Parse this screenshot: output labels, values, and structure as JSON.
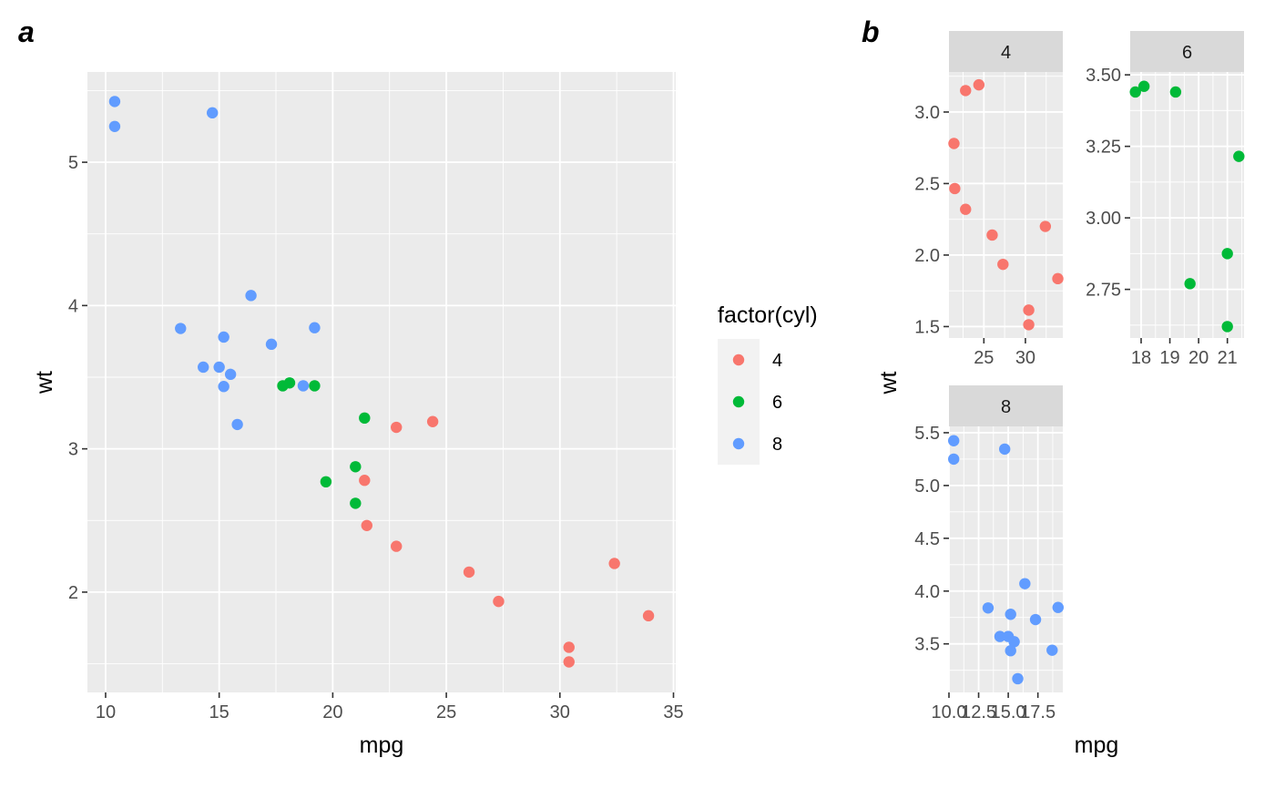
{
  "panel_tags": {
    "a": "a",
    "b": "b"
  },
  "chart_data": [
    {
      "panel": "a",
      "type": "scatter",
      "xlabel": "mpg",
      "ylabel": "wt",
      "xlim": [
        9.2,
        35.1
      ],
      "ylim": [
        1.3,
        5.63
      ],
      "x_ticks": [
        10,
        15,
        20,
        25,
        30,
        35
      ],
      "x_tick_labels": [
        "10",
        "15",
        "20",
        "25",
        "30",
        "35"
      ],
      "y_ticks": [
        2,
        3,
        4,
        5
      ],
      "y_tick_labels": [
        "2",
        "3",
        "4",
        "5"
      ],
      "grid": true,
      "legend": {
        "title": "factor(cyl)",
        "placement": "right",
        "entries": [
          {
            "label": "4",
            "color": "#F8766D"
          },
          {
            "label": "6",
            "color": "#00BA38"
          },
          {
            "label": "8",
            "color": "#619CFF"
          }
        ]
      },
      "series": [
        {
          "name": "4",
          "color": "#F8766D",
          "points": [
            [
              22.8,
              3.15
            ],
            [
              24.4,
              3.19
            ],
            [
              21.4,
              2.78
            ],
            [
              21.5,
              2.465
            ],
            [
              22.8,
              2.32
            ],
            [
              26.0,
              2.14
            ],
            [
              27.3,
              1.935
            ],
            [
              32.4,
              2.2
            ],
            [
              33.9,
              1.835
            ],
            [
              30.4,
              1.615
            ],
            [
              30.4,
              1.513
            ]
          ]
        },
        {
          "name": "6",
          "color": "#00BA38",
          "points": [
            [
              17.8,
              3.44
            ],
            [
              18.1,
              3.46
            ],
            [
              19.2,
              3.44
            ],
            [
              21.4,
              3.215
            ],
            [
              21.0,
              2.875
            ],
            [
              19.7,
              2.77
            ],
            [
              21.0,
              2.62
            ]
          ]
        },
        {
          "name": "8",
          "color": "#619CFF",
          "points": [
            [
              10.4,
              5.424
            ],
            [
              10.4,
              5.25
            ],
            [
              14.7,
              5.345
            ],
            [
              16.4,
              4.07
            ],
            [
              13.3,
              3.84
            ],
            [
              19.2,
              3.845
            ],
            [
              15.2,
              3.78
            ],
            [
              17.3,
              3.73
            ],
            [
              14.3,
              3.57
            ],
            [
              15.0,
              3.57
            ],
            [
              15.5,
              3.52
            ],
            [
              18.7,
              3.44
            ],
            [
              15.2,
              3.435
            ],
            [
              15.8,
              3.17
            ]
          ]
        }
      ]
    },
    {
      "panel": "b",
      "type": "scatter",
      "xlabel": "mpg",
      "ylabel": "wt",
      "facets": [
        {
          "strip": "4",
          "color": "#F8766D",
          "xlim": [
            20.8,
            34.5
          ],
          "ylim": [
            1.42,
            3.28
          ],
          "x_ticks": [
            25,
            30
          ],
          "x_tick_labels": [
            "25",
            "30"
          ],
          "y_ticks": [
            1.5,
            2.0,
            2.5,
            3.0
          ],
          "y_tick_labels": [
            "1.5",
            "2.0",
            "2.5",
            "3.0"
          ],
          "points": [
            [
              22.8,
              3.15
            ],
            [
              24.4,
              3.19
            ],
            [
              21.4,
              2.78
            ],
            [
              21.5,
              2.465
            ],
            [
              22.8,
              2.32
            ],
            [
              26.0,
              2.14
            ],
            [
              27.3,
              1.935
            ],
            [
              32.4,
              2.2
            ],
            [
              33.9,
              1.835
            ],
            [
              30.4,
              1.615
            ],
            [
              30.4,
              1.513
            ]
          ]
        },
        {
          "strip": "6",
          "color": "#00BA38",
          "xlim": [
            17.62,
            21.58
          ],
          "ylim": [
            2.58,
            3.51
          ],
          "x_ticks": [
            18,
            19,
            20,
            21
          ],
          "x_tick_labels": [
            "18",
            "19",
            "20",
            "21"
          ],
          "y_ticks": [
            2.75,
            3.0,
            3.25,
            3.5
          ],
          "y_tick_labels": [
            "2.75",
            "3.00",
            "3.25",
            "3.50"
          ],
          "points": [
            [
              17.8,
              3.44
            ],
            [
              18.1,
              3.46
            ],
            [
              19.2,
              3.44
            ],
            [
              21.4,
              3.215
            ],
            [
              21.0,
              2.875
            ],
            [
              19.7,
              2.77
            ],
            [
              21.0,
              2.62
            ]
          ]
        },
        {
          "strip": "8",
          "color": "#619CFF",
          "xlim": [
            10.0,
            19.6
          ],
          "ylim": [
            3.04,
            5.56
          ],
          "x_ticks": [
            10.0,
            12.5,
            15.0,
            17.5
          ],
          "x_tick_labels": [
            "10.0",
            "12.5",
            "15.0",
            "17.5"
          ],
          "y_ticks": [
            3.5,
            4.0,
            4.5,
            5.0,
            5.5
          ],
          "y_tick_labels": [
            "3.5",
            "4.0",
            "4.5",
            "5.0",
            "5.5"
          ],
          "points": [
            [
              10.4,
              5.424
            ],
            [
              10.4,
              5.25
            ],
            [
              14.7,
              5.345
            ],
            [
              16.4,
              4.07
            ],
            [
              13.3,
              3.84
            ],
            [
              19.2,
              3.845
            ],
            [
              15.2,
              3.78
            ],
            [
              17.3,
              3.73
            ],
            [
              14.3,
              3.57
            ],
            [
              15.0,
              3.57
            ],
            [
              15.5,
              3.52
            ],
            [
              18.7,
              3.44
            ],
            [
              15.2,
              3.435
            ],
            [
              15.8,
              3.17
            ]
          ]
        }
      ]
    }
  ]
}
